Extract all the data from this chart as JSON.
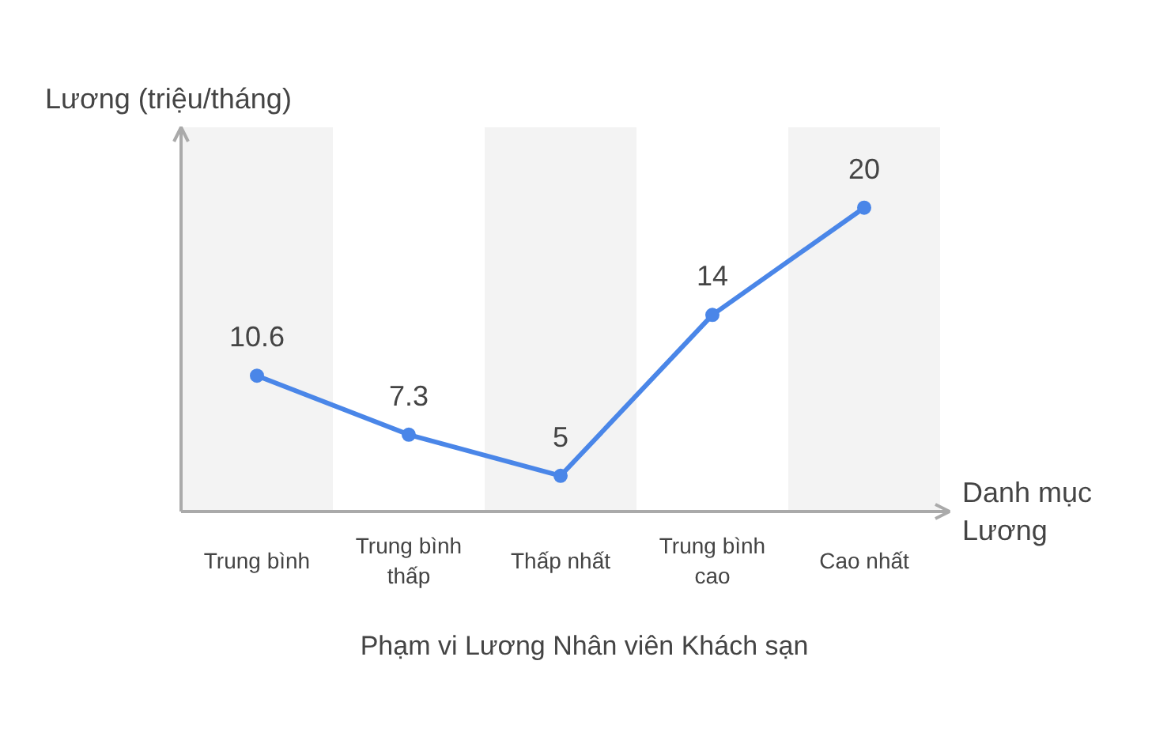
{
  "chart_data": {
    "type": "line",
    "title": "Phạm vi Lương Nhân viên Khách sạn",
    "xlabel": "Danh mục Lương",
    "ylabel": "Lương (triệu/tháng)",
    "categories": [
      "Trung bình",
      "Trung bình thấp",
      "Thấp nhất",
      "Trung bình cao",
      "Cao nhất"
    ],
    "series": [
      {
        "color": "#4a86e8",
        "values": [
          10.6,
          7.3,
          5,
          14,
          20
        ]
      }
    ],
    "ylim": [
      3,
      24.5
    ],
    "data_labels": true,
    "marker": "circle",
    "line_style": "solid",
    "tick_labels": "x",
    "bands": [
      {
        "axis": "x",
        "from": "Trung bình",
        "to": "Trung bình",
        "color": "#f3f3f3"
      },
      {
        "axis": "x",
        "from": "Thấp nhất",
        "to": "Thấp nhất",
        "color": "#f3f3f3"
      },
      {
        "axis": "x",
        "from": "Cao nhất",
        "to": "Cao nhất",
        "color": "#f3f3f3"
      }
    ]
  }
}
